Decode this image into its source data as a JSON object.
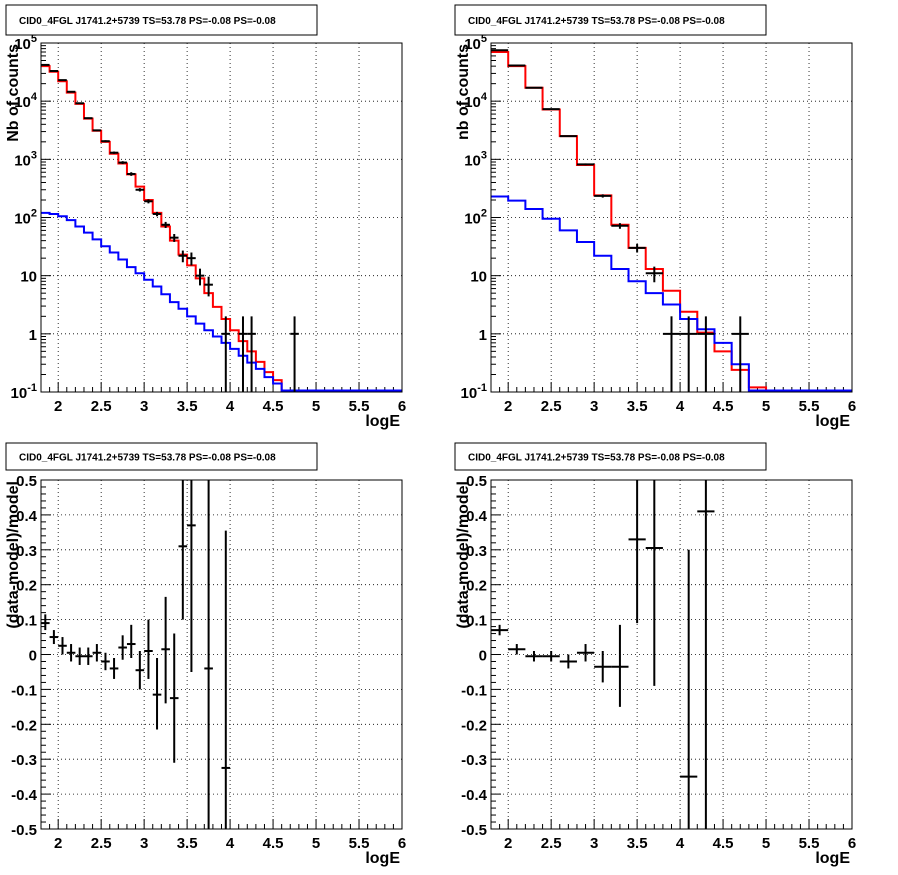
{
  "chart_data": [
    {
      "type": "line",
      "title": "CID0_4FGL J1741.2+5739 TS=53.78 PS=-0.08 PS=-0.08",
      "xlabel": "logE",
      "ylabel": "Nb of counts",
      "xlim": [
        1.8,
        6.0
      ],
      "ylim": [
        0.1,
        100000
      ],
      "yscale": "log",
      "grid": true,
      "xticks": [
        "2",
        "2.5",
        "3",
        "3.5",
        "4",
        "4.5",
        "5",
        "5.5",
        "6"
      ],
      "yticks": [
        "10^-1",
        "1",
        "10",
        "10^2",
        "10^3",
        "10^4",
        "10^5"
      ],
      "bin_edges": [
        1.8,
        1.9,
        2.0,
        2.1,
        2.2,
        2.3,
        2.4,
        2.5,
        2.6,
        2.7,
        2.8,
        2.9,
        3.0,
        3.1,
        3.2,
        3.3,
        3.4,
        3.5,
        3.6,
        3.7,
        3.8,
        3.9,
        4.0,
        4.1,
        4.2,
        4.3,
        4.4,
        4.5,
        4.6,
        4.7,
        4.8,
        4.9,
        5.0,
        5.1,
        5.2,
        5.3,
        5.4,
        5.5,
        5.6,
        5.7,
        5.8,
        5.9,
        6.0
      ],
      "series": [
        {
          "color": "#ff0000",
          "values": [
            40000,
            32000,
            22000,
            14000,
            9000,
            5000,
            3100,
            2000,
            1250,
            850,
            550,
            340,
            200,
            120,
            70,
            40,
            23,
            15,
            9,
            5,
            2.9,
            1.8,
            1.15,
            0.75,
            0.5,
            0.33,
            0.22,
            0.16,
            0.1,
            0.1,
            0.1,
            0.1,
            0.1,
            0.1,
            0.1,
            0.1,
            0.1,
            0.1,
            0.1,
            0.1,
            0.1,
            0.1
          ]
        },
        {
          "color": "#0000ff",
          "values": [
            120,
            115,
            105,
            90,
            70,
            55,
            42,
            32,
            25,
            19,
            14,
            11,
            8.5,
            6.5,
            4.8,
            3.5,
            2.7,
            2,
            1.5,
            1.15,
            0.9,
            0.7,
            0.55,
            0.42,
            0.32,
            0.25,
            0.18,
            0.14,
            0.1,
            0.1,
            0.1,
            0.1,
            0.1,
            0.1,
            0.1,
            0.1,
            0.1,
            0.1,
            0.1,
            0.1,
            0.1,
            0.1
          ]
        }
      ],
      "points": [
        {
          "x": 1.85,
          "y": 42000,
          "xerr": 0.05,
          "ylo": 41600,
          "yhi": 42400
        },
        {
          "x": 1.95,
          "y": 33000,
          "xerr": 0.05,
          "ylo": 32600,
          "yhi": 33400
        },
        {
          "x": 2.05,
          "y": 23000,
          "xerr": 0.05,
          "ylo": 22700,
          "yhi": 23300
        },
        {
          "x": 2.15,
          "y": 14500,
          "xerr": 0.05,
          "ylo": 14200,
          "yhi": 14800
        },
        {
          "x": 2.25,
          "y": 9200,
          "xerr": 0.05,
          "ylo": 9000,
          "yhi": 9400
        },
        {
          "x": 2.35,
          "y": 5100,
          "xerr": 0.05,
          "ylo": 4950,
          "yhi": 5250
        },
        {
          "x": 2.45,
          "y": 3150,
          "xerr": 0.05,
          "ylo": 3050,
          "yhi": 3250
        },
        {
          "x": 2.55,
          "y": 2050,
          "xerr": 0.05,
          "ylo": 1970,
          "yhi": 2130
        },
        {
          "x": 2.65,
          "y": 1300,
          "xerr": 0.05,
          "ylo": 1240,
          "yhi": 1360
        },
        {
          "x": 2.75,
          "y": 880,
          "xerr": 0.05,
          "ylo": 830,
          "yhi": 930
        },
        {
          "x": 2.85,
          "y": 560,
          "xerr": 0.05,
          "ylo": 520,
          "yhi": 600
        },
        {
          "x": 2.95,
          "y": 300,
          "xerr": 0.05,
          "ylo": 280,
          "yhi": 320
        },
        {
          "x": 3.05,
          "y": 190,
          "xerr": 0.05,
          "ylo": 175,
          "yhi": 205
        },
        {
          "x": 3.15,
          "y": 115,
          "xerr": 0.05,
          "ylo": 105,
          "yhi": 125
        },
        {
          "x": 3.25,
          "y": 75,
          "xerr": 0.05,
          "ylo": 66,
          "yhi": 84
        },
        {
          "x": 3.35,
          "y": 45,
          "xerr": 0.05,
          "ylo": 38,
          "yhi": 52
        },
        {
          "x": 3.45,
          "y": 22,
          "xerr": 0.05,
          "ylo": 17,
          "yhi": 27
        },
        {
          "x": 3.55,
          "y": 20,
          "xerr": 0.05,
          "ylo": 15,
          "yhi": 25
        },
        {
          "x": 3.65,
          "y": 10,
          "xerr": 0.05,
          "ylo": 6.8,
          "yhi": 13.2
        },
        {
          "x": 3.75,
          "y": 7,
          "xerr": 0.05,
          "ylo": 4.4,
          "yhi": 9.6
        },
        {
          "x": 3.95,
          "y": 1,
          "xerr": 0.05,
          "ylo": 0.1,
          "yhi": 2
        },
        {
          "x": 4.15,
          "y": 1,
          "xerr": 0.05,
          "ylo": 0.1,
          "yhi": 2
        },
        {
          "x": 4.25,
          "y": 1,
          "xerr": 0.05,
          "ylo": 0.1,
          "yhi": 2
        },
        {
          "x": 4.75,
          "y": 1,
          "xerr": 0.05,
          "ylo": 0.1,
          "yhi": 2
        }
      ]
    },
    {
      "type": "line",
      "title": "CID0_4FGL J1741.2+5739 TS=53.78 PS=-0.08 PS=-0.08",
      "xlabel": "logE",
      "ylabel": "nb of counts",
      "xlim": [
        1.8,
        6.0
      ],
      "ylim": [
        0.1,
        100000
      ],
      "yscale": "log",
      "grid": true,
      "xticks": [
        "2",
        "2.5",
        "3",
        "3.5",
        "4",
        "4.5",
        "5",
        "5.5",
        "6"
      ],
      "yticks": [
        "10^-1",
        "1",
        "10",
        "10^2",
        "10^3",
        "10^4",
        "10^5"
      ],
      "bin_edges": [
        1.8,
        2.0,
        2.2,
        2.4,
        2.6,
        2.8,
        3.0,
        3.2,
        3.4,
        3.6,
        3.8,
        4.0,
        4.2,
        4.4,
        4.6,
        4.8,
        5.0,
        5.2,
        5.4,
        5.6,
        5.8,
        6.0
      ],
      "series": [
        {
          "color": "#ff0000",
          "values": [
            70000,
            40000,
            17000,
            7200,
            2500,
            800,
            240,
            75,
            30,
            13,
            5.5,
            2.4,
            1.05,
            0.5,
            0.24,
            0.12,
            0.1,
            0.1,
            0.1,
            0.1,
            0.1
          ]
        },
        {
          "color": "#0000ff",
          "values": [
            230,
            195,
            140,
            95,
            60,
            38,
            22,
            13,
            8,
            5,
            3.2,
            1.8,
            1.2,
            0.7,
            0.3,
            0.1,
            0.1,
            0.1,
            0.1,
            0.1,
            0.1
          ]
        }
      ],
      "points": [
        {
          "x": 1.9,
          "y": 75000,
          "xerr": 0.1,
          "ylo": 74500,
          "yhi": 75500
        },
        {
          "x": 2.1,
          "y": 41000,
          "xerr": 0.1,
          "ylo": 40600,
          "yhi": 41400
        },
        {
          "x": 2.3,
          "y": 17000,
          "xerr": 0.1,
          "ylo": 16800,
          "yhi": 17200
        },
        {
          "x": 2.5,
          "y": 7300,
          "xerr": 0.1,
          "ylo": 7200,
          "yhi": 7400
        },
        {
          "x": 2.7,
          "y": 2500,
          "xerr": 0.1,
          "ylo": 2450,
          "yhi": 2550
        },
        {
          "x": 2.9,
          "y": 820,
          "xerr": 0.1,
          "ylo": 790,
          "yhi": 850
        },
        {
          "x": 3.1,
          "y": 235,
          "xerr": 0.1,
          "ylo": 220,
          "yhi": 250
        },
        {
          "x": 3.3,
          "y": 72,
          "xerr": 0.1,
          "ylo": 64,
          "yhi": 80
        },
        {
          "x": 3.5,
          "y": 30,
          "xerr": 0.1,
          "ylo": 25,
          "yhi": 35
        },
        {
          "x": 3.7,
          "y": 11,
          "xerr": 0.1,
          "ylo": 7.7,
          "yhi": 14.3
        },
        {
          "x": 3.9,
          "y": 1,
          "xerr": 0.1,
          "ylo": 0.1,
          "yhi": 2
        },
        {
          "x": 4.1,
          "y": 1,
          "xerr": 0.1,
          "ylo": 0.1,
          "yhi": 2
        },
        {
          "x": 4.3,
          "y": 1,
          "xerr": 0.1,
          "ylo": 0.1,
          "yhi": 2
        },
        {
          "x": 4.7,
          "y": 1,
          "xerr": 0.1,
          "ylo": 0.1,
          "yhi": 2
        }
      ]
    },
    {
      "type": "scatter",
      "title": "CID0_4FGL J1741.2+5739 TS=53.78 PS=-0.08 PS=-0.08",
      "xlabel": "logE",
      "ylabel": "(data-model)/model",
      "xlim": [
        1.8,
        6.0
      ],
      "ylim": [
        -0.5,
        0.5
      ],
      "yscale": "linear",
      "grid": true,
      "xticks": [
        "2",
        "2.5",
        "3",
        "3.5",
        "4",
        "4.5",
        "5",
        "5.5",
        "6"
      ],
      "yticks": [
        "-0.5",
        "-0.4",
        "-0.3",
        "-0.2",
        "-0.1",
        "0",
        "0.1",
        "0.2",
        "0.3",
        "0.4",
        "0.5"
      ],
      "points": [
        {
          "x": 1.85,
          "y": 0.09,
          "xerr": 0.05,
          "ylo": 0.07,
          "yhi": 0.115
        },
        {
          "x": 1.95,
          "y": 0.05,
          "xerr": 0.05,
          "ylo": 0.03,
          "yhi": 0.07
        },
        {
          "x": 2.05,
          "y": 0.025,
          "xerr": 0.05,
          "ylo": 0.0,
          "yhi": 0.05
        },
        {
          "x": 2.15,
          "y": 0.005,
          "xerr": 0.05,
          "ylo": -0.02,
          "yhi": 0.03
        },
        {
          "x": 2.25,
          "y": -0.005,
          "xerr": 0.05,
          "ylo": -0.03,
          "yhi": 0.02
        },
        {
          "x": 2.35,
          "y": -0.005,
          "xerr": 0.05,
          "ylo": -0.03,
          "yhi": 0.02
        },
        {
          "x": 2.45,
          "y": 0.005,
          "xerr": 0.05,
          "ylo": -0.02,
          "yhi": 0.03
        },
        {
          "x": 2.55,
          "y": -0.02,
          "xerr": 0.05,
          "ylo": -0.045,
          "yhi": 0.005
        },
        {
          "x": 2.65,
          "y": -0.04,
          "xerr": 0.05,
          "ylo": -0.07,
          "yhi": -0.01
        },
        {
          "x": 2.75,
          "y": 0.02,
          "xerr": 0.05,
          "ylo": -0.015,
          "yhi": 0.055
        },
        {
          "x": 2.85,
          "y": 0.03,
          "xerr": 0.05,
          "ylo": -0.01,
          "yhi": 0.085
        },
        {
          "x": 2.95,
          "y": -0.045,
          "xerr": 0.05,
          "ylo": -0.1,
          "yhi": 0.01
        },
        {
          "x": 3.05,
          "y": 0.01,
          "xerr": 0.05,
          "ylo": -0.07,
          "yhi": 0.1
        },
        {
          "x": 3.15,
          "y": -0.115,
          "xerr": 0.05,
          "ylo": -0.215,
          "yhi": -0.01
        },
        {
          "x": 3.25,
          "y": 0.015,
          "xerr": 0.05,
          "ylo": -0.14,
          "yhi": 0.165
        },
        {
          "x": 3.35,
          "y": -0.125,
          "xerr": 0.05,
          "ylo": -0.31,
          "yhi": 0.06
        },
        {
          "x": 3.45,
          "y": 0.31,
          "xerr": 0.05,
          "ylo": 0.1,
          "yhi": 0.5
        },
        {
          "x": 3.55,
          "y": 0.37,
          "xerr": 0.05,
          "ylo": -0.05,
          "yhi": 0.5
        },
        {
          "x": 3.75,
          "y": -0.04,
          "xerr": 0.05,
          "ylo": -0.5,
          "yhi": 0.5
        },
        {
          "x": 3.95,
          "y": -0.325,
          "xerr": 0.05,
          "ylo": -0.5,
          "yhi": 0.355
        }
      ]
    },
    {
      "type": "scatter",
      "title": "CID0_4FGL J1741.2+5739 TS=53.78 PS=-0.08 PS=-0.08",
      "xlabel": "logE",
      "ylabel": "(data-model)/model",
      "xlim": [
        1.8,
        6.0
      ],
      "ylim": [
        -0.5,
        0.5
      ],
      "yscale": "linear",
      "grid": true,
      "xticks": [
        "2",
        "2.5",
        "3",
        "3.5",
        "4",
        "4.5",
        "5",
        "5.5",
        "6"
      ],
      "yticks": [
        "-0.5",
        "-0.4",
        "-0.3",
        "-0.2",
        "-0.1",
        "0",
        "0.1",
        "0.2",
        "0.3",
        "0.4",
        "0.5"
      ],
      "points": [
        {
          "x": 1.9,
          "y": 0.07,
          "xerr": 0.1,
          "ylo": 0.055,
          "yhi": 0.085
        },
        {
          "x": 2.1,
          "y": 0.015,
          "xerr": 0.1,
          "ylo": 0.0,
          "yhi": 0.03
        },
        {
          "x": 2.3,
          "y": -0.005,
          "xerr": 0.1,
          "ylo": -0.02,
          "yhi": 0.01
        },
        {
          "x": 2.5,
          "y": -0.005,
          "xerr": 0.1,
          "ylo": -0.02,
          "yhi": 0.01
        },
        {
          "x": 2.7,
          "y": -0.02,
          "xerr": 0.1,
          "ylo": -0.04,
          "yhi": 0.0
        },
        {
          "x": 2.9,
          "y": 0.005,
          "xerr": 0.1,
          "ylo": -0.02,
          "yhi": 0.03
        },
        {
          "x": 3.1,
          "y": -0.035,
          "xerr": 0.1,
          "ylo": -0.08,
          "yhi": 0.01
        },
        {
          "x": 3.3,
          "y": -0.035,
          "xerr": 0.1,
          "ylo": -0.15,
          "yhi": 0.085
        },
        {
          "x": 3.5,
          "y": 0.33,
          "xerr": 0.1,
          "ylo": 0.09,
          "yhi": 0.5
        },
        {
          "x": 3.7,
          "y": 0.305,
          "xerr": 0.1,
          "ylo": -0.09,
          "yhi": 0.5
        },
        {
          "x": 4.1,
          "y": -0.35,
          "xerr": 0.1,
          "ylo": -0.5,
          "yhi": 0.3
        },
        {
          "x": 4.3,
          "y": 0.41,
          "xerr": 0.1,
          "ylo": -0.5,
          "yhi": 0.5
        }
      ]
    }
  ]
}
